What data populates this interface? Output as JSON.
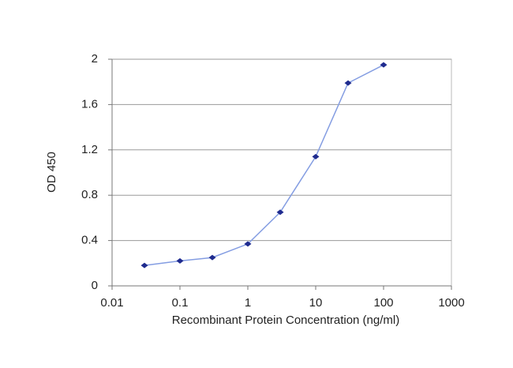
{
  "chart_data": {
    "type": "line",
    "x_label": "Recombinant Protein Concentration (ng/ml)",
    "y_label": "OD 450",
    "x": [
      0.03,
      0.1,
      0.3,
      1,
      3,
      10,
      30,
      100
    ],
    "values": [
      0.18,
      0.22,
      0.25,
      0.37,
      0.65,
      1.14,
      1.79,
      1.95
    ],
    "color": "#849de2",
    "marker_color": "#1f2b8f",
    "xscale": "log",
    "xlim": [
      0.01,
      1000
    ],
    "xticks": [
      0.01,
      0.1,
      1,
      10,
      100,
      1000
    ],
    "ylim": [
      0,
      2
    ],
    "yticks": [
      0,
      0.4,
      0.8,
      1.2,
      1.6,
      2
    ],
    "grid": true
  }
}
